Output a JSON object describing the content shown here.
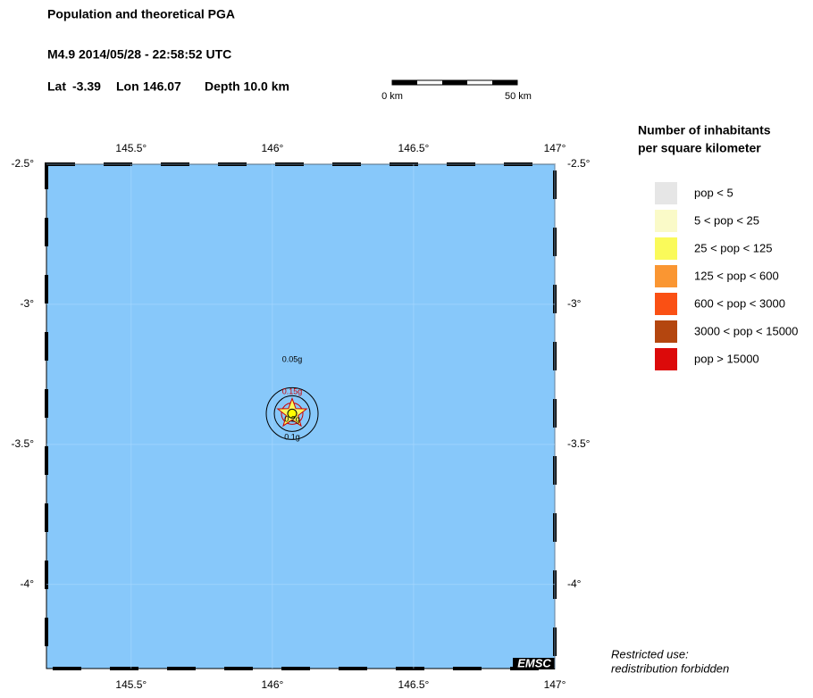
{
  "header": {
    "title": "Population and theoretical PGA",
    "event": "M4.9  2014/05/28 - 22:58:52 UTC",
    "lat_label": "Lat",
    "lat": -3.39,
    "lon_label": "Lon",
    "lon": 146.07,
    "depth": "Depth  10.0 km"
  },
  "scale_bar": {
    "start": "0 km",
    "end": "50 km"
  },
  "map": {
    "lon_range": [
      145.2,
      147
    ],
    "lat_range": [
      -2.5,
      -4.3
    ],
    "lon_ticks": [
      {
        "value": 145.5,
        "label": "145.5°"
      },
      {
        "value": 146,
        "label": "146°"
      },
      {
        "value": 146.5,
        "label": "146.5°"
      },
      {
        "value": 147,
        "label": "147°"
      }
    ],
    "lat_ticks": [
      {
        "value": -2.5,
        "label": "-2.5°"
      },
      {
        "value": -3,
        "label": "-3°"
      },
      {
        "value": -3.5,
        "label": "-3.5°"
      },
      {
        "value": -4,
        "label": "-4°"
      }
    ],
    "contours": [
      {
        "label": "0.05g",
        "color": "#000000"
      },
      {
        "label": "0.15g",
        "color": "#cc0000"
      },
      {
        "label": "0.2g",
        "color": "#000000"
      },
      {
        "label": "0.1g",
        "color": "#000000"
      }
    ],
    "logo": "EMSC"
  },
  "legend": {
    "title": [
      "Number of inhabitants",
      "per square kilometer"
    ],
    "items": [
      {
        "label": "pop < 5",
        "color": "#e6e6e6"
      },
      {
        "label": "5 < pop < 25",
        "color": "#fafac8"
      },
      {
        "label": "25 < pop < 125",
        "color": "#fafa5a"
      },
      {
        "label": "125 < pop < 600",
        "color": "#fa9632"
      },
      {
        "label": "600 < pop < 3000",
        "color": "#fa5014"
      },
      {
        "label": "3000 < pop < 15000",
        "color": "#b4460f"
      },
      {
        "label": "pop > 15000",
        "color": "#dc0a0a"
      }
    ]
  },
  "footer": [
    "Restricted use:",
    "redistribution forbidden"
  ]
}
